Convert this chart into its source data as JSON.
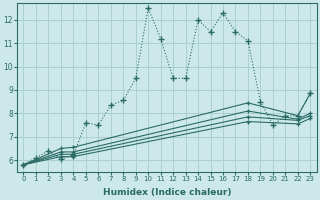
{
  "xlabel": "Humidex (Indice chaleur)",
  "background_color": "#cce8e8",
  "grid_color": "#aad0d0",
  "line_color": "#2a6b65",
  "xlim": [
    -0.5,
    23.5
  ],
  "ylim": [
    5.5,
    12.7
  ],
  "xticks": [
    0,
    1,
    2,
    3,
    4,
    5,
    6,
    7,
    8,
    9,
    10,
    11,
    12,
    13,
    14,
    15,
    16,
    17,
    18,
    19,
    20,
    21,
    22,
    23
  ],
  "yticks": [
    6,
    7,
    8,
    9,
    10,
    11,
    12
  ],
  "main_x": [
    0,
    1,
    2,
    3,
    4,
    5,
    6,
    7,
    8,
    9,
    10,
    11,
    12,
    13,
    14,
    15,
    16,
    17,
    18,
    19,
    20,
    21,
    22,
    23
  ],
  "main_y": [
    5.8,
    6.1,
    6.4,
    6.05,
    6.2,
    7.6,
    7.5,
    8.35,
    8.55,
    9.5,
    12.5,
    11.2,
    9.5,
    9.5,
    12.0,
    11.5,
    12.3,
    11.5,
    11.1,
    8.5,
    7.5,
    7.9,
    7.9,
    8.85
  ],
  "line2_x": [
    0,
    3,
    4,
    18,
    22,
    23
  ],
  "line2_y": [
    5.8,
    6.5,
    6.55,
    8.45,
    7.9,
    8.85
  ],
  "line3_x": [
    0,
    3,
    4,
    18,
    22,
    23
  ],
  "line3_y": [
    5.8,
    6.35,
    6.35,
    8.1,
    7.75,
    8.0
  ],
  "line4_x": [
    0,
    3,
    4,
    18,
    22,
    23
  ],
  "line4_y": [
    5.8,
    6.25,
    6.25,
    7.85,
    7.7,
    7.9
  ],
  "line5_x": [
    0,
    3,
    4,
    18,
    22,
    23
  ],
  "line5_y": [
    5.8,
    6.15,
    6.15,
    7.65,
    7.55,
    7.78
  ]
}
